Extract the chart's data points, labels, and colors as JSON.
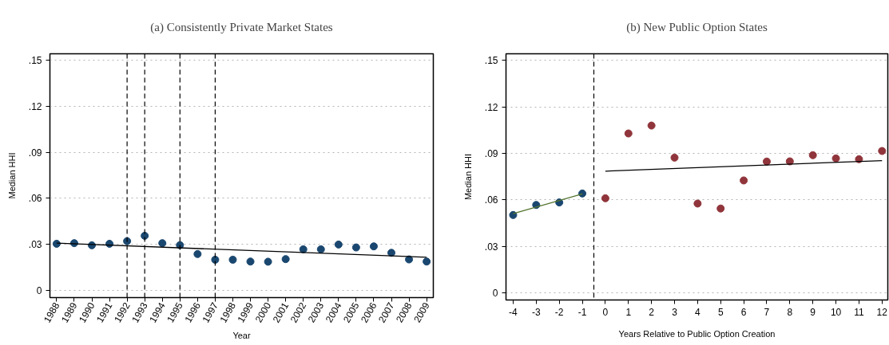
{
  "chart_data": [
    {
      "type": "scatter",
      "title": "(a) Consistently Private Market States",
      "xlabel": "Year",
      "ylabel": "Median HHI",
      "x": [
        1988,
        1989,
        1990,
        1991,
        1992,
        1993,
        1994,
        1995,
        1996,
        1997,
        1998,
        1999,
        2000,
        2001,
        2002,
        2003,
        2004,
        2005,
        2006,
        2007,
        2008,
        2009
      ],
      "series": [
        {
          "color": "#1a476f",
          "marker": "circle",
          "values": [
            0.0304,
            0.0308,
            0.0294,
            0.0304,
            0.0321,
            0.0356,
            0.0308,
            0.0295,
            0.0237,
            0.02,
            0.02,
            0.0188,
            0.0187,
            0.0204,
            0.0268,
            0.0268,
            0.0299,
            0.028,
            0.0287,
            0.0245,
            0.0202,
            0.0188
          ]
        },
        {
          "type": "line",
          "color": "#000000",
          "line_style": "solid",
          "x": [
            1988,
            2009
          ],
          "values": [
            0.0308,
            0.0216
          ]
        }
      ],
      "xlim": [
        1987.62,
        2009.38
      ],
      "xticks": [
        1988,
        1989,
        1990,
        1991,
        1992,
        1993,
        1994,
        1995,
        1996,
        1997,
        1998,
        1999,
        2000,
        2001,
        2002,
        2003,
        2004,
        2005,
        2006,
        2007,
        2008,
        2009
      ],
      "ylim": [
        -0.0047,
        0.1543
      ],
      "yticks": [
        {
          "value": 0,
          "label": "0"
        },
        {
          "value": 0.03,
          "label": ".03"
        },
        {
          "value": 0.06,
          "label": ".06"
        },
        {
          "value": 0.09,
          "label": ".09"
        },
        {
          "value": 0.12,
          "label": ".12"
        },
        {
          "value": 0.15,
          "label": ".15"
        }
      ],
      "ref_lines": [
        {
          "axis": "x",
          "value": 1992,
          "color": "#000000",
          "line_style": "dashed"
        },
        {
          "axis": "x",
          "value": 1993,
          "color": "#000000",
          "line_style": "dashed"
        },
        {
          "axis": "x",
          "value": 1995,
          "color": "#000000",
          "line_style": "dashed"
        },
        {
          "axis": "x",
          "value": 1997,
          "color": "#000000",
          "line_style": "dashed"
        }
      ],
      "grid": "y"
    },
    {
      "type": "scatter",
      "title": "(b) New Public Option States",
      "xlabel": "Years Relative to Public Option Creation",
      "ylabel": "Median HHI",
      "series": [
        {
          "color": "#1a476f",
          "marker": "circle",
          "x": [
            -4,
            -3,
            -2,
            -1
          ],
          "values": [
            0.0503,
            0.0568,
            0.0584,
            0.0642
          ]
        },
        {
          "color": "#90353b",
          "marker": "circle",
          "x": [
            0,
            1,
            2,
            3,
            4,
            5,
            6,
            7,
            8,
            9,
            10,
            11,
            12
          ],
          "values": [
            0.0611,
            0.1029,
            0.108,
            0.0873,
            0.0577,
            0.0545,
            0.0726,
            0.0848,
            0.0849,
            0.0889,
            0.0868,
            0.0863,
            0.0916
          ]
        },
        {
          "type": "line",
          "color": "#55752f",
          "line_style": "solid",
          "x": [
            -4,
            -1
          ],
          "values": [
            0.0512,
            0.0639
          ]
        },
        {
          "type": "line",
          "color": "#000000",
          "line_style": "solid",
          "x": [
            0,
            12
          ],
          "values": [
            0.0786,
            0.0854
          ]
        }
      ],
      "xlim": [
        -4.31,
        12.25
      ],
      "xticks": [
        {
          "value": -4,
          "label": "-4"
        },
        {
          "value": -3,
          "label": "-3"
        },
        {
          "value": -2,
          "label": "-2"
        },
        {
          "value": -1,
          "label": "-1"
        },
        0,
        1,
        2,
        3,
        4,
        5,
        6,
        7,
        8,
        9,
        10,
        11,
        12
      ],
      "ylim": [
        -0.0045,
        0.1543
      ],
      "yticks": [
        {
          "value": 0,
          "label": "0"
        },
        {
          "value": 0.03,
          "label": ".03"
        },
        {
          "value": 0.06,
          "label": ".06"
        },
        {
          "value": 0.09,
          "label": ".09"
        },
        {
          "value": 0.12,
          "label": ".12"
        },
        {
          "value": 0.15,
          "label": ".15"
        }
      ],
      "ref_lines": [
        {
          "axis": "x",
          "value": -0.5,
          "color": "#000000",
          "line_style": "dashed"
        }
      ],
      "grid": "y"
    }
  ]
}
